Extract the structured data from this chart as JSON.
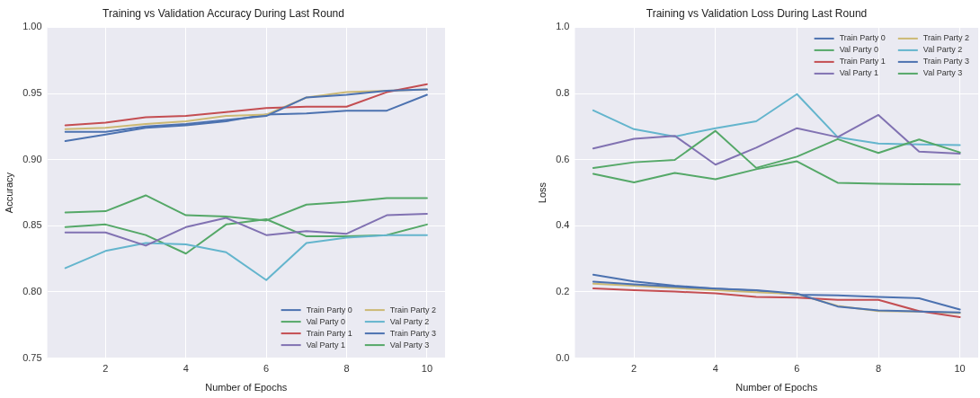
{
  "chart_data": [
    {
      "type": "line",
      "title": "Training vs Validation Accuracy During Last Round",
      "xlabel": "Number of Epochs",
      "ylabel": "Accuracy",
      "x": [
        1,
        2,
        3,
        4,
        5,
        6,
        7,
        8,
        9,
        10
      ],
      "xlim": [
        0.55,
        10.45
      ],
      "xticks": [
        2,
        4,
        6,
        8,
        10
      ],
      "ylim": [
        0.75,
        1.0
      ],
      "yticks": [
        {
          "value": 0.75,
          "label": "0.75"
        },
        {
          "value": 0.8,
          "label": "0.80"
        },
        {
          "value": 0.85,
          "label": "0.85"
        },
        {
          "value": 0.9,
          "label": "0.90"
        },
        {
          "value": 0.95,
          "label": "0.95"
        },
        {
          "value": 1.0,
          "label": "1.00"
        }
      ],
      "grid": true,
      "legend": "bottom right",
      "marker": "none",
      "line_style": "solid",
      "series": [
        {
          "name": "Train Party 0",
          "color": "#4c72b0",
          "values": [
            0.921,
            0.921,
            0.925,
            0.927,
            0.93,
            0.933,
            0.947,
            0.949,
            0.952,
            0.953
          ]
        },
        {
          "name": "Val Party 0",
          "color": "#55a868",
          "values": [
            0.86,
            0.861,
            0.873,
            0.858,
            0.857,
            0.854,
            0.866,
            0.868,
            0.871,
            0.871
          ]
        },
        {
          "name": "Train Party 1",
          "color": "#c44e52",
          "values": [
            0.926,
            0.928,
            0.932,
            0.933,
            0.936,
            0.939,
            0.94,
            0.94,
            0.951,
            0.957
          ]
        },
        {
          "name": "Val Party 1",
          "color": "#8172b2",
          "values": [
            0.845,
            0.845,
            0.835,
            0.849,
            0.856,
            0.843,
            0.846,
            0.844,
            0.858,
            0.859
          ]
        },
        {
          "name": "Train Party 2",
          "color": "#ccb974",
          "values": [
            0.923,
            0.924,
            0.927,
            0.929,
            0.933,
            0.934,
            0.947,
            0.951,
            0.952,
            0.953
          ]
        },
        {
          "name": "Val Party 2",
          "color": "#64b5cd",
          "values": [
            0.818,
            0.831,
            0.837,
            0.836,
            0.83,
            0.809,
            0.837,
            0.841,
            0.843,
            0.843
          ]
        },
        {
          "name": "Train Party 3",
          "color": "#4c72b0",
          "values": [
            0.914,
            0.919,
            0.924,
            0.926,
            0.929,
            0.934,
            0.935,
            0.937,
            0.937,
            0.949
          ]
        },
        {
          "name": "Val Party 3",
          "color": "#55a868",
          "values": [
            0.849,
            0.851,
            0.843,
            0.829,
            0.851,
            0.855,
            0.842,
            0.842,
            0.843,
            0.851
          ]
        }
      ]
    },
    {
      "type": "line",
      "title": "Training vs Validation Loss During Last Round",
      "xlabel": "Number of Epochs",
      "ylabel": "Loss",
      "x": [
        1,
        2,
        3,
        4,
        5,
        6,
        7,
        8,
        9,
        10
      ],
      "xlim": [
        0.55,
        10.45
      ],
      "xticks": [
        2,
        4,
        6,
        8,
        10
      ],
      "ylim": [
        0,
        1.0
      ],
      "yticks": [
        {
          "value": 0,
          "label": "0.0"
        },
        {
          "value": 0.2,
          "label": "0.2"
        },
        {
          "value": 0.4,
          "label": "0.4"
        },
        {
          "value": 0.6,
          "label": "0.6"
        },
        {
          "value": 0.8,
          "label": "0.8"
        },
        {
          "value": 1.0,
          "label": "1.0"
        }
      ],
      "grid": true,
      "legend": "top right",
      "marker": "none",
      "line_style": "solid",
      "series": [
        {
          "name": "Train Party 0",
          "color": "#4c72b0",
          "values": [
            0.231,
            0.223,
            0.216,
            0.21,
            0.205,
            0.195,
            0.156,
            0.144,
            0.141,
            0.138
          ]
        },
        {
          "name": "Val Party 0",
          "color": "#55a868",
          "values": [
            0.575,
            0.592,
            0.599,
            0.687,
            0.575,
            0.609,
            0.662,
            0.62,
            0.661,
            0.622
          ]
        },
        {
          "name": "Train Party 1",
          "color": "#c44e52",
          "values": [
            0.211,
            0.205,
            0.201,
            0.196,
            0.185,
            0.183,
            0.176,
            0.176,
            0.142,
            0.124
          ]
        },
        {
          "name": "Val Party 1",
          "color": "#8172b2",
          "values": [
            0.634,
            0.663,
            0.672,
            0.585,
            0.636,
            0.695,
            0.668,
            0.735,
            0.624,
            0.618
          ]
        },
        {
          "name": "Train Party 2",
          "color": "#ccb974",
          "values": [
            0.225,
            0.219,
            0.212,
            0.205,
            0.199,
            0.194,
            0.158,
            0.142,
            0.141,
            0.136
          ]
        },
        {
          "name": "Val Party 2",
          "color": "#64b5cd",
          "values": [
            0.749,
            0.692,
            0.67,
            0.695,
            0.716,
            0.798,
            0.668,
            0.649,
            0.646,
            0.644
          ]
        },
        {
          "name": "Train Party 3",
          "color": "#4c72b0",
          "values": [
            0.252,
            0.232,
            0.219,
            0.21,
            0.204,
            0.192,
            0.19,
            0.185,
            0.181,
            0.147
          ]
        },
        {
          "name": "Val Party 3",
          "color": "#55a868",
          "values": [
            0.557,
            0.531,
            0.56,
            0.541,
            0.571,
            0.595,
            0.53,
            0.527,
            0.526,
            0.525
          ]
        }
      ]
    }
  ]
}
